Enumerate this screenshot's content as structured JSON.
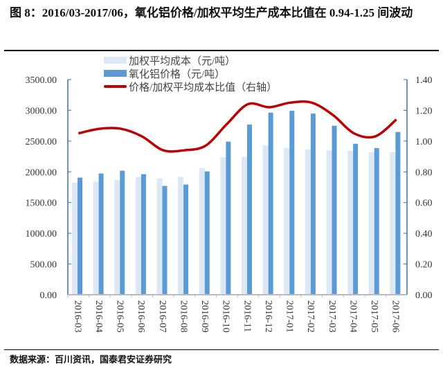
{
  "title": "图 8：2016/03-2017/06，氧化铝价格/加权平均生产成本比值在 0.94-1.25 间波动",
  "source": "数据来源：百川资讯，国泰君安证券研究",
  "chart_data": {
    "type": "bar+line",
    "categories": [
      "2016-03",
      "2016-04",
      "2016-05",
      "2016-06",
      "2016-07",
      "2016-08",
      "2016-09",
      "2016-10",
      "2016-11",
      "2016-12",
      "2017-01",
      "2017-02",
      "2017-03",
      "2017-04",
      "2017-05",
      "2017-06"
    ],
    "series": [
      {
        "name": "加权平均成本（元/吨）",
        "type": "bar",
        "axis": "left",
        "color": "#dce8f5",
        "values": [
          1822,
          1837,
          1867,
          1912,
          1894,
          1920,
          2062,
          2239,
          2239,
          2430,
          2385,
          2362,
          2347,
          2340,
          2317,
          2317
        ]
      },
      {
        "name": "氧化铝价格（元/吨）",
        "type": "bar",
        "axis": "left",
        "color": "#5b9bd5",
        "values": [
          1905,
          1972,
          2017,
          1961,
          1770,
          1792,
          2006,
          2490,
          2767,
          2962,
          2992,
          2947,
          2749,
          2456,
          2385,
          2647
        ]
      },
      {
        "name": "价格/加权平均成本比值（右轴）",
        "type": "line",
        "axis": "right",
        "color": "#c00000",
        "values": [
          1.05,
          1.08,
          1.08,
          1.03,
          0.94,
          0.94,
          0.97,
          1.11,
          1.24,
          1.22,
          1.25,
          1.25,
          1.17,
          1.05,
          1.03,
          1.14
        ]
      }
    ],
    "left_axis": {
      "ylim": [
        0,
        3500
      ],
      "ticks": [
        "0.00",
        "500.00",
        "1000.00",
        "1500.00",
        "2000.00",
        "2500.00",
        "3000.00",
        "3500.00"
      ]
    },
    "right_axis": {
      "ylim": [
        0,
        1.4
      ],
      "ticks": [
        "0.00",
        "0.20",
        "0.40",
        "0.60",
        "0.80",
        "1.00",
        "1.20",
        "1.40"
      ]
    },
    "grid": false,
    "legend": "top-center"
  }
}
